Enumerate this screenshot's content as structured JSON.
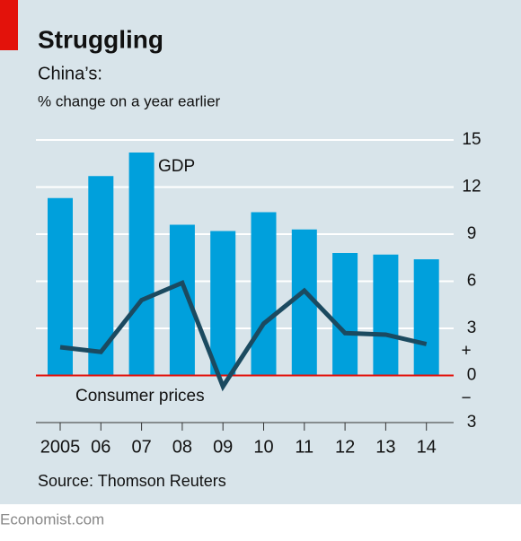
{
  "chart_data": {
    "type": "bar-line",
    "title": "Struggling",
    "subtitle": "China’s:",
    "y_label": "% change on a year earlier",
    "categories": [
      "2005",
      "06",
      "07",
      "08",
      "09",
      "10",
      "11",
      "12",
      "13",
      "14"
    ],
    "series": [
      {
        "name": "GDP",
        "type": "bar",
        "color": "#00a0dc",
        "values": [
          11.3,
          12.7,
          14.2,
          9.6,
          9.2,
          10.4,
          9.3,
          7.8,
          7.7,
          7.4
        ]
      },
      {
        "name": "Consumer prices",
        "type": "line",
        "color": "#1b4a60",
        "values": [
          1.8,
          1.5,
          4.8,
          5.9,
          -0.7,
          3.3,
          5.4,
          2.7,
          2.6,
          2.0
        ]
      }
    ],
    "ylim": [
      -3,
      15
    ],
    "yticks": [
      {
        "value": -3,
        "label": "3"
      },
      0,
      3,
      6,
      9,
      12,
      15
    ],
    "sign_labels": [
      "+",
      "−"
    ],
    "grid": true,
    "zero_line_color": "#e3120b",
    "source": "Source: Thomson Reuters",
    "footer": "Economist.com"
  }
}
